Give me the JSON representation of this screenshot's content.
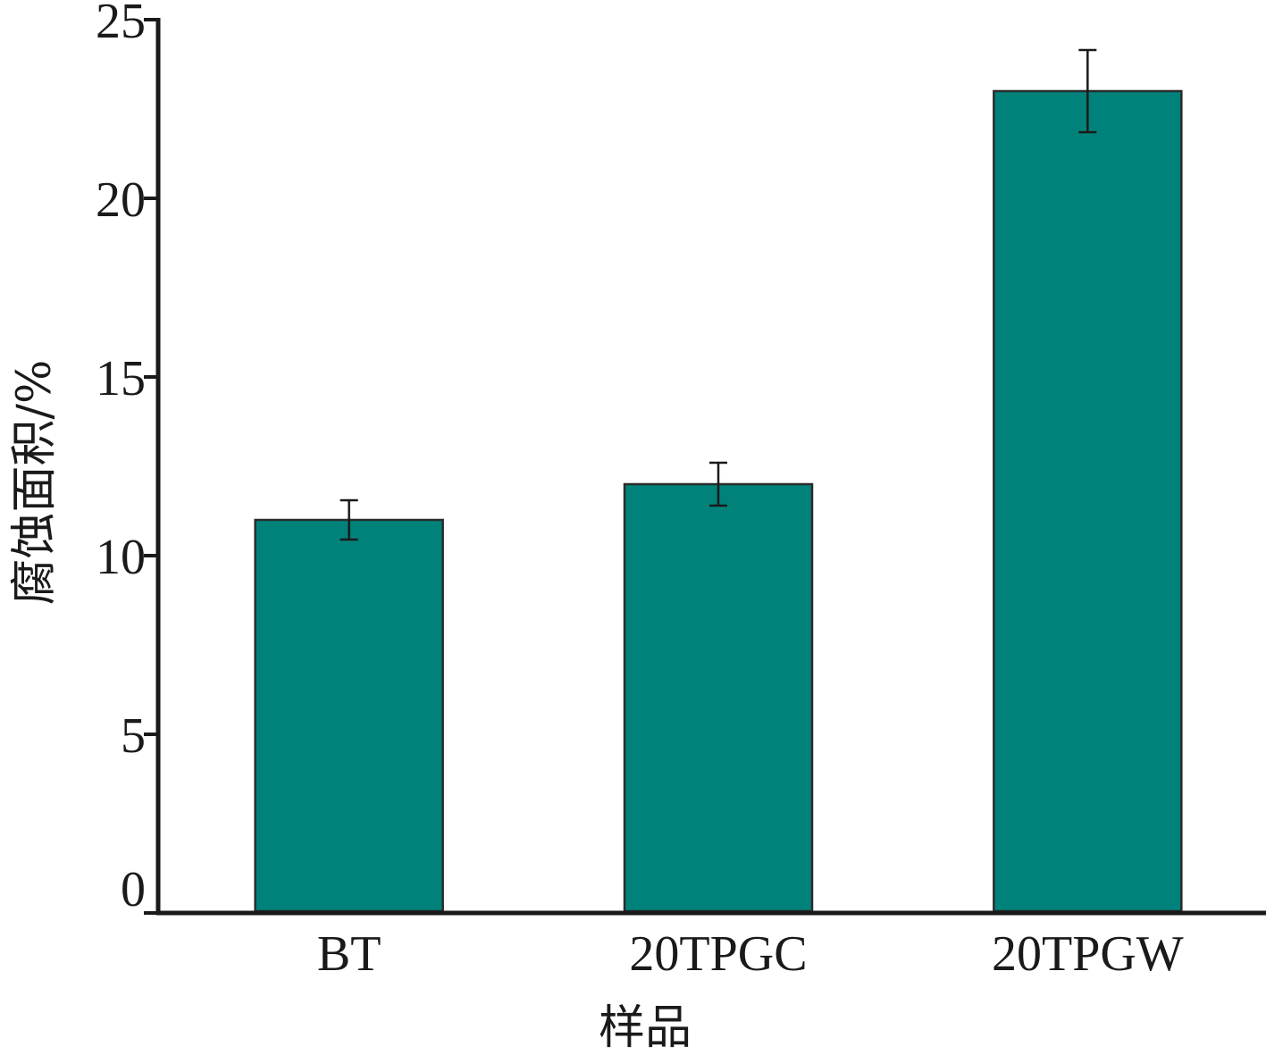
{
  "chart_data": {
    "type": "bar",
    "title": "",
    "xlabel": "样品",
    "ylabel": "腐蚀面积/%",
    "categories": [
      "BT",
      "20TPGC",
      "20TPGW"
    ],
    "values": [
      11.0,
      12.0,
      23.0
    ],
    "error": [
      0.55,
      0.6,
      1.15
    ],
    "ylim": [
      0,
      25
    ],
    "yticks": [
      "0",
      "5",
      "10",
      "15",
      "20",
      "25"
    ],
    "grid": false,
    "bar_color": "#00827a",
    "bar_edge_color": "#2b2b2b",
    "error_color": "#1a1a1a"
  }
}
